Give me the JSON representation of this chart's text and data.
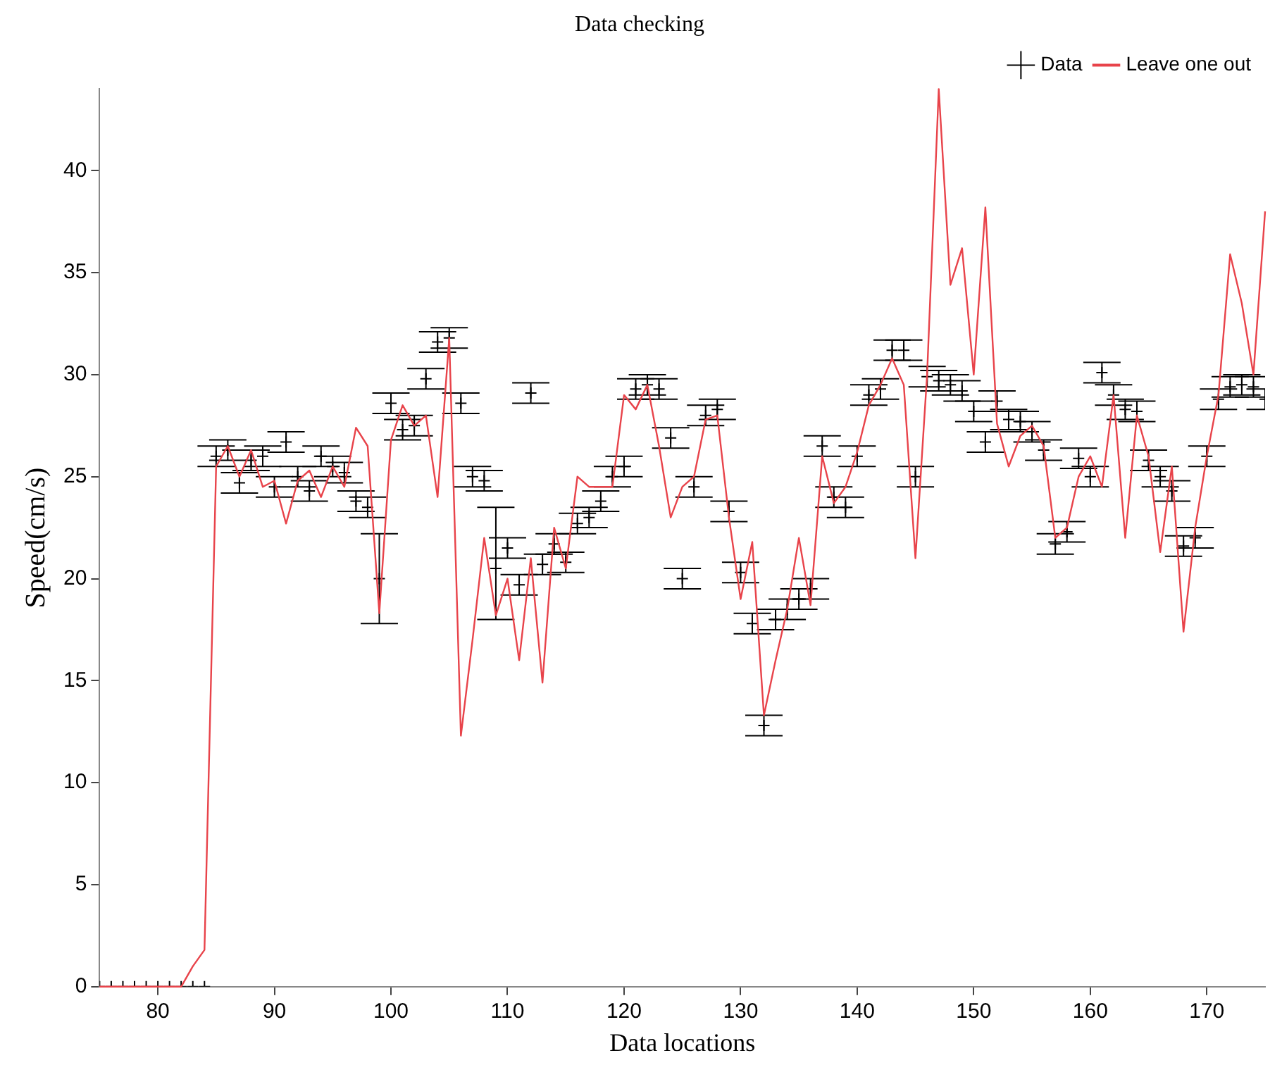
{
  "chart_data": {
    "type": "scatter",
    "title": "Data checking",
    "xlabel": "Data locations",
    "ylabel": "Speed(cm/s)",
    "x": [
      75,
      76,
      77,
      78,
      79,
      80,
      81,
      82,
      83,
      84,
      85,
      86,
      87,
      88,
      89,
      90,
      91,
      92,
      93,
      94,
      95,
      96,
      97,
      98,
      99,
      100,
      101,
      102,
      103,
      104,
      105,
      106,
      107,
      108,
      109,
      110,
      111,
      112,
      113,
      114,
      115,
      116,
      117,
      118,
      119,
      120,
      121,
      122,
      123,
      124,
      125,
      126,
      127,
      128,
      129,
      130,
      131,
      132,
      133,
      134,
      135,
      136,
      137,
      138,
      139,
      140,
      141,
      142,
      143,
      144,
      145,
      146,
      147,
      148,
      149,
      150,
      151,
      152,
      153,
      154,
      155,
      156,
      157,
      158,
      159,
      160,
      161,
      162,
      163,
      164,
      165,
      166,
      167,
      168,
      169,
      170,
      171,
      172,
      173,
      174,
      175
    ],
    "xlim": [
      75,
      175
    ],
    "xticks": [
      80,
      90,
      100,
      110,
      120,
      130,
      140,
      150,
      160,
      170
    ],
    "ylim": [
      0,
      44
    ],
    "yticks": [
      0,
      5,
      10,
      15,
      20,
      25,
      30,
      35,
      40
    ],
    "grid": false,
    "legend": "top right",
    "series": [
      {
        "name": "Data",
        "marker": "cross",
        "color": "#000000",
        "values": [
          0,
          0,
          0,
          0,
          0,
          0,
          0,
          0,
          0,
          0,
          26,
          26.3,
          24.7,
          25.8,
          26,
          24.5,
          26.7,
          25,
          24.3,
          26,
          25.5,
          25.2,
          23.8,
          23.5,
          20,
          28.6,
          27.3,
          27.5,
          29.8,
          31.6,
          31.8,
          28.6,
          25,
          24.8,
          20.5,
          21.5,
          19.7,
          29.1,
          20.7,
          21.7,
          20.8,
          22.7,
          23,
          23.8,
          25,
          25.5,
          29.3,
          29.5,
          29.3,
          26.9,
          20,
          24.5,
          28,
          28.3,
          23.3,
          20.3,
          17.8,
          12.8,
          18,
          18.5,
          19,
          19.5,
          26.5,
          24,
          23.5,
          26,
          29,
          29.3,
          31.2,
          31.2,
          25,
          29.9,
          29.7,
          29.5,
          29.2,
          28.2,
          26.7,
          28.7,
          27.8,
          27.7,
          27.2,
          26.3,
          21.7,
          22.3,
          25.9,
          25,
          30.1,
          29,
          28.3,
          28.2,
          25.8,
          25,
          24.3,
          21.6,
          22,
          26,
          28.8,
          29.4,
          29.5,
          29.4,
          28.8
        ],
        "errors": [
          null,
          null,
          null,
          null,
          null,
          null,
          null,
          null,
          null,
          null,
          0.5,
          0.5,
          0.5,
          0.5,
          0.5,
          0.5,
          0.5,
          0.5,
          0.5,
          0.5,
          0.5,
          0.5,
          0.5,
          0.5,
          2.2,
          0.5,
          0.5,
          0.5,
          0.5,
          0.5,
          0.5,
          0.5,
          0.5,
          0.5,
          [
            18,
            23.5
          ],
          0.5,
          0.5,
          0.5,
          0.5,
          0.5,
          0.5,
          0.5,
          0.5,
          0.5,
          0.5,
          0.5,
          0.5,
          0.5,
          0.5,
          0.5,
          0.5,
          0.5,
          0.5,
          0.5,
          0.5,
          0.5,
          0.5,
          0.5,
          0.5,
          0.5,
          0.5,
          0.5,
          0.5,
          0.5,
          0.5,
          0.5,
          0.5,
          0.5,
          0.5,
          0.5,
          0.5,
          0.5,
          0.5,
          0.5,
          0.5,
          0.5,
          0.5,
          0.5,
          0.5,
          0.5,
          0.5,
          0.5,
          0.5,
          0.5,
          0.5,
          0.5,
          0.5,
          0.5,
          0.5,
          0.5,
          0.5,
          0.5,
          0.5,
          0.5,
          0.5,
          0.5,
          0.5,
          0.5,
          0.5,
          0.5,
          0.5
        ]
      },
      {
        "name": "Leave one out",
        "type": "line",
        "marker": "none",
        "color": "#e8434a",
        "values": [
          0,
          0,
          0,
          0,
          0,
          0,
          0,
          0,
          1,
          1.8,
          25.5,
          26.5,
          25,
          26.3,
          24.5,
          24.8,
          22.7,
          24.8,
          25.3,
          24,
          25.5,
          24.5,
          27.4,
          26.5,
          18.3,
          26.8,
          28.5,
          27.5,
          28,
          24,
          31.8,
          12.3,
          17,
          22,
          18.2,
          20,
          16,
          21,
          14.9,
          22.5,
          20.5,
          25,
          24.5,
          24.5,
          24.5,
          29,
          28.3,
          29.5,
          26.5,
          23,
          24.5,
          25,
          27.8,
          28,
          23,
          19,
          21.8,
          13.3,
          16,
          18.5,
          22,
          18.7,
          26,
          23.7,
          24.5,
          26.2,
          28.5,
          29.5,
          30.8,
          29.5,
          21,
          30,
          44,
          34.4,
          36.2,
          30,
          38.2,
          27.6,
          25.5,
          27,
          27.5,
          26.5,
          22,
          22.5,
          25,
          26,
          24.5,
          29,
          22,
          28,
          26,
          21.3,
          25.5,
          17.4,
          22.5,
          26,
          29,
          35.9,
          33.5,
          30,
          38
        ]
      }
    ]
  }
}
